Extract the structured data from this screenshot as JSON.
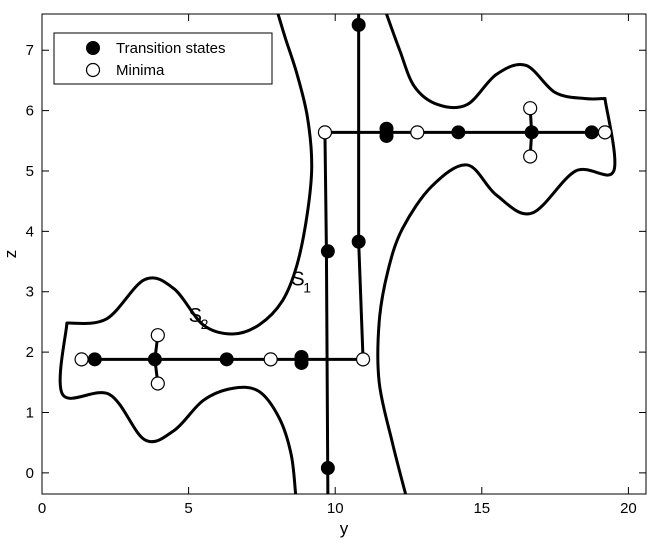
{
  "chart_data": {
    "type": "scatter",
    "title": "",
    "xlabel": "y",
    "ylabel": "z",
    "xlim": [
      0,
      20.6
    ],
    "ylim": [
      -0.35,
      7.6
    ],
    "xticks": [
      0,
      5,
      10,
      15,
      20
    ],
    "yticks": [
      0,
      1,
      2,
      3,
      4,
      5,
      6,
      7
    ],
    "grid": false,
    "legend_position": "top-left",
    "legend": [
      {
        "label": "Transition states",
        "marker": "filled-circle"
      },
      {
        "label": "Minima",
        "marker": "open-circle"
      }
    ],
    "series": [
      {
        "name": "Transition states",
        "points": [
          {
            "x": 1.8,
            "y": 1.88
          },
          {
            "x": 3.85,
            "y": 1.88
          },
          {
            "x": 6.3,
            "y": 1.88
          },
          {
            "x": 8.85,
            "y": 1.92
          },
          {
            "x": 8.85,
            "y": 1.82
          },
          {
            "x": 9.75,
            "y": 0.08
          },
          {
            "x": 9.75,
            "y": 3.67
          },
          {
            "x": 10.8,
            "y": 3.83
          },
          {
            "x": 10.8,
            "y": 7.42
          },
          {
            "x": 11.75,
            "y": 5.7
          },
          {
            "x": 11.75,
            "y": 5.58
          },
          {
            "x": 14.2,
            "y": 5.64
          },
          {
            "x": 16.7,
            "y": 5.64
          },
          {
            "x": 18.75,
            "y": 5.64
          }
        ]
      },
      {
        "name": "Minima",
        "points": [
          {
            "x": 1.35,
            "y": 1.88
          },
          {
            "x": 3.95,
            "y": 2.28
          },
          {
            "x": 3.95,
            "y": 1.48
          },
          {
            "x": 7.8,
            "y": 1.88
          },
          {
            "x": 10.95,
            "y": 1.88
          },
          {
            "x": 9.65,
            "y": 5.64
          },
          {
            "x": 12.8,
            "y": 5.64
          },
          {
            "x": 16.65,
            "y": 6.04
          },
          {
            "x": 16.65,
            "y": 5.24
          },
          {
            "x": 19.2,
            "y": 5.64
          }
        ]
      }
    ],
    "paths": [
      {
        "id": "path-bottom-horizontal",
        "points": [
          [
            1.8,
            1.88
          ],
          [
            10.95,
            1.88
          ]
        ]
      },
      {
        "id": "path-left-vertical",
        "points": [
          [
            3.95,
            2.28
          ],
          [
            3.85,
            1.88
          ],
          [
            3.95,
            1.48
          ]
        ]
      },
      {
        "id": "path-center-vertical-left",
        "points": [
          [
            9.75,
            -0.35
          ],
          [
            9.7,
            3.7
          ],
          [
            9.65,
            5.64
          ]
        ]
      },
      {
        "id": "path-center-vertical-right",
        "points": [
          [
            10.8,
            7.6
          ],
          [
            10.8,
            3.83
          ],
          [
            10.95,
            1.88
          ]
        ]
      },
      {
        "id": "path-top-horizontal",
        "points": [
          [
            9.65,
            5.64
          ],
          [
            18.75,
            5.64
          ],
          [
            19.2,
            5.64
          ]
        ]
      },
      {
        "id": "path-right-vertical",
        "points": [
          [
            16.65,
            6.04
          ],
          [
            16.7,
            5.64
          ],
          [
            16.65,
            5.24
          ]
        ]
      }
    ],
    "contours": [
      {
        "id": "contour-S2-upper-left",
        "points": [
          [
            0.85,
            2.48
          ],
          [
            2.2,
            2.55
          ],
          [
            3.5,
            3.2
          ],
          [
            4.5,
            3.05
          ],
          [
            5.5,
            2.45
          ],
          [
            6.5,
            2.3
          ],
          [
            7.4,
            2.45
          ],
          [
            8.2,
            2.85
          ],
          [
            8.7,
            3.45
          ],
          [
            9.05,
            4.3
          ],
          [
            9.2,
            5.1
          ],
          [
            9.05,
            5.9
          ],
          [
            8.7,
            6.6
          ],
          [
            8.3,
            7.2
          ],
          [
            8.05,
            7.6
          ]
        ]
      },
      {
        "id": "contour-S2-lower-left",
        "points": [
          [
            0.85,
            2.48
          ],
          [
            0.7,
            1.3
          ],
          [
            2.3,
            1.3
          ],
          [
            3.5,
            0.55
          ],
          [
            4.5,
            0.7
          ],
          [
            5.5,
            1.2
          ],
          [
            6.5,
            1.4
          ],
          [
            7.4,
            1.35
          ],
          [
            8.1,
            0.9
          ],
          [
            8.5,
            0.3
          ],
          [
            8.65,
            -0.35
          ]
        ]
      },
      {
        "id": "contour-S2-lower-right",
        "points": [
          [
            12.4,
            -0.35
          ],
          [
            11.95,
            0.5
          ],
          [
            11.5,
            1.5
          ],
          [
            11.5,
            2.5
          ],
          [
            11.8,
            3.35
          ],
          [
            12.3,
            4.05
          ],
          [
            13.3,
            4.75
          ],
          [
            14.5,
            5.1
          ],
          [
            15.5,
            4.6
          ],
          [
            16.7,
            4.3
          ],
          [
            18.2,
            5.0
          ],
          [
            19.5,
            5.0
          ],
          [
            19.2,
            6.2
          ]
        ]
      },
      {
        "id": "contour-S2-upper-right",
        "points": [
          [
            11.75,
            7.6
          ],
          [
            12.2,
            7.0
          ],
          [
            12.7,
            6.4
          ],
          [
            13.5,
            6.1
          ],
          [
            14.5,
            6.1
          ],
          [
            15.5,
            6.6
          ],
          [
            16.5,
            6.75
          ],
          [
            17.5,
            6.3
          ],
          [
            18.5,
            6.2
          ],
          [
            19.2,
            6.2
          ]
        ]
      }
    ],
    "annotations": [
      {
        "text": "S",
        "subscript": "1",
        "x": 8.5,
        "y": 3.1
      },
      {
        "text": "S",
        "subscript": "2",
        "x": 5.0,
        "y": 2.5
      }
    ]
  }
}
